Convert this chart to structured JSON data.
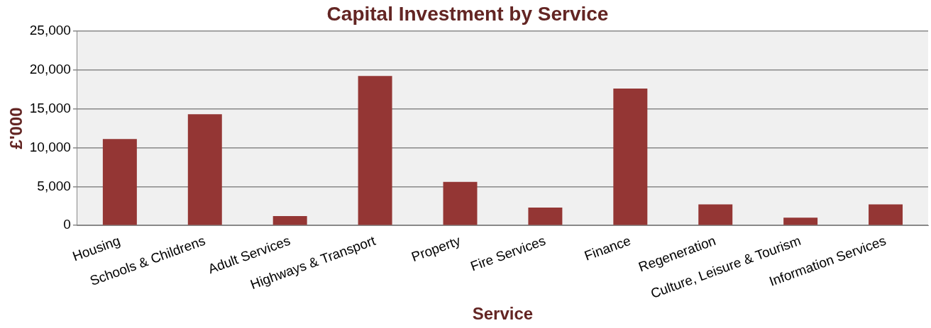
{
  "chart_data": {
    "type": "bar",
    "title": "Capital Investment by Service",
    "xlabel": "Service",
    "ylabel": "£'000",
    "categories": [
      "Housing",
      "Schools & Childrens",
      "Adult Services",
      "Highways & Transport",
      "Property",
      "Fire Services",
      "Finance",
      "Regeneration",
      "Culture, Leisure & Tourism",
      "Information Services"
    ],
    "values": [
      11100,
      14300,
      1200,
      19200,
      5600,
      2300,
      17600,
      2700,
      1000,
      2700
    ],
    "color": "#943634",
    "ylim": [
      0,
      25000
    ],
    "yticks": [
      0,
      {
        "value": 5000,
        "label": "5,000"
      },
      {
        "value": 10000,
        "label": "10,000"
      },
      {
        "value": 15000,
        "label": "15,000"
      },
      {
        "value": 20000,
        "label": "20,000"
      },
      {
        "value": 25000,
        "label": "25,000"
      }
    ],
    "grid": "y",
    "legend": false
  }
}
